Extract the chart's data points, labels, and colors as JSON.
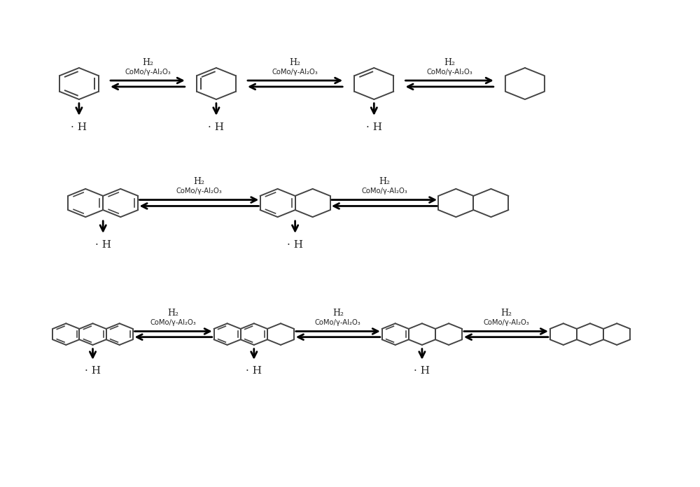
{
  "background_color": "#ffffff",
  "text_color": "#222222",
  "line_color": "#444444",
  "catalyst_text": "CoMo/γ-Al₂O₃",
  "h2_text": "H₂",
  "radical_text": "· H",
  "figsize": [
    10.0,
    6.96
  ],
  "dpi": 100,
  "arrow_lw": 2.0,
  "mol_lw": 1.4
}
